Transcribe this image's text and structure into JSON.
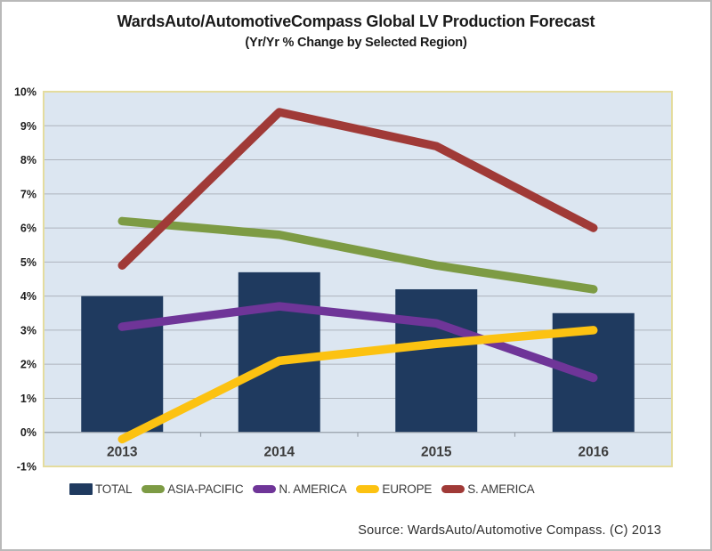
{
  "footer": {
    "source": "Source: WardsAuto/Automotive Compass. (C) 2013"
  },
  "colors": {
    "page_border": "#b9b9b9",
    "plot_bg": "#dce6f1",
    "grid": "#aeb4bd",
    "frame": "#e4dc9e",
    "axis": "#98a0aa",
    "tick_label": "#1d1d1d",
    "year_label": "#3c3c3c"
  },
  "chart_data": {
    "type": "combo",
    "title": "WardsAuto/AutomotiveCompass Global LV Production Forecast",
    "subtitle": "(Yr/Yr % Change by Selected Region)",
    "categories": [
      "2013",
      "2014",
      "2015",
      "2016"
    ],
    "series": [
      {
        "name": "TOTAL",
        "type": "bar",
        "color": "#1f3a5f",
        "values": [
          4.0,
          4.7,
          4.2,
          3.5
        ]
      },
      {
        "name": "ASIA-PACIFIC",
        "type": "line",
        "color": "#7d9b44",
        "values": [
          6.2,
          5.8,
          4.9,
          4.2
        ]
      },
      {
        "name": "N. AMERICA",
        "type": "line",
        "color": "#6f3598",
        "values": [
          3.1,
          3.7,
          3.2,
          1.6
        ]
      },
      {
        "name": "EUROPE",
        "type": "line",
        "color": "#fcc211",
        "values": [
          -0.2,
          2.1,
          2.6,
          3.0
        ]
      },
      {
        "name": "S. AMERICA",
        "type": "line",
        "color": "#a03a37",
        "values": [
          4.9,
          9.4,
          8.4,
          6.0
        ]
      }
    ],
    "ylim": [
      -1,
      10
    ],
    "ytick_step": 1,
    "ytick_suffix": "%",
    "grid": true,
    "legend_position": "bottom",
    "bars_baseline": 0
  }
}
